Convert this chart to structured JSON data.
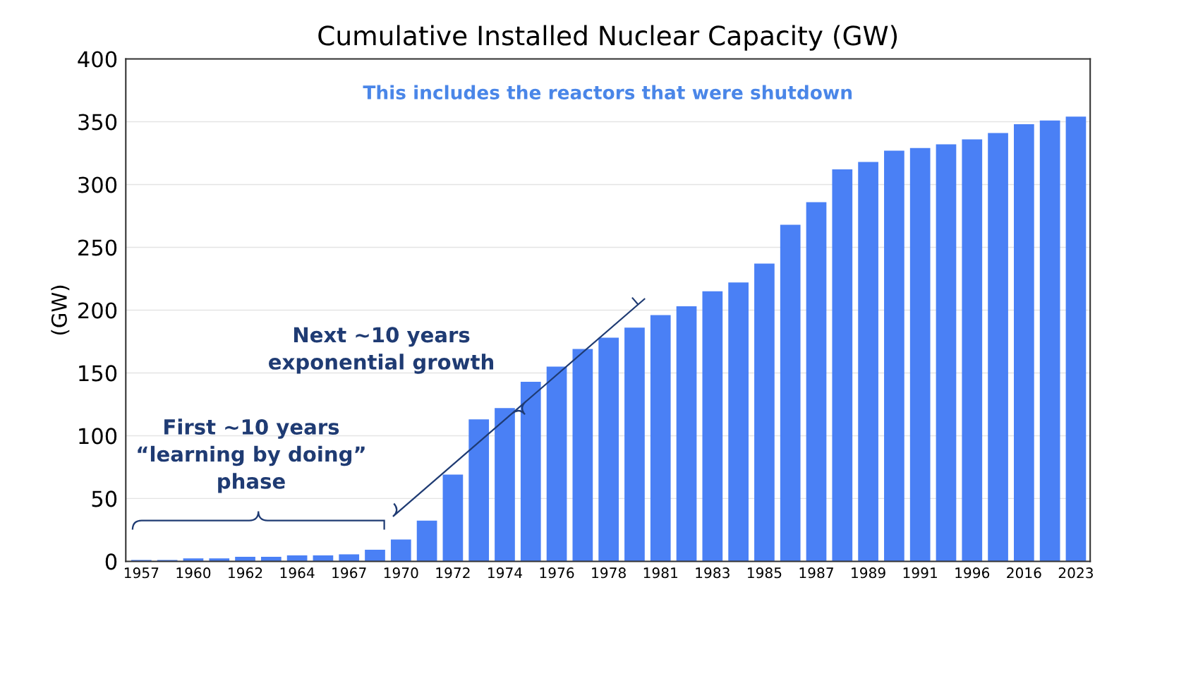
{
  "chart_data": {
    "type": "bar",
    "title": "Cumulative Installed Nuclear Capacity (GW)",
    "ylabel": "(GW)",
    "categories": [
      "1957",
      null,
      "1960",
      null,
      "1962",
      null,
      "1964",
      null,
      "1967",
      null,
      "1970",
      null,
      "1972",
      null,
      "1974",
      null,
      "1976",
      null,
      "1978",
      null,
      "1981",
      null,
      "1983",
      null,
      "1985",
      null,
      "1987",
      null,
      "1989",
      null,
      "1991",
      null,
      "1996",
      null,
      "2016",
      null,
      "2023"
    ],
    "values": [
      1.1,
      1.1,
      2.4,
      2.4,
      3.6,
      3.6,
      4.7,
      4.7,
      5.6,
      9.2,
      17.4,
      32.4,
      69,
      113,
      122,
      143,
      155,
      169,
      178,
      186,
      196,
      203,
      215,
      222,
      237,
      268,
      286,
      312,
      318,
      327,
      329,
      332,
      336,
      341,
      348,
      351,
      354
    ],
    "color": "#4a80f5",
    "ylim": [
      0,
      400
    ],
    "yticks": [
      0,
      50,
      100,
      150,
      200,
      250,
      300,
      350,
      400
    ],
    "grid": "y",
    "annotations": [
      "This includes the reactors that were shutdown",
      "First ~10 years\n“learning by doing”\nphase",
      "Next ~10 years\nexponential growth"
    ]
  }
}
